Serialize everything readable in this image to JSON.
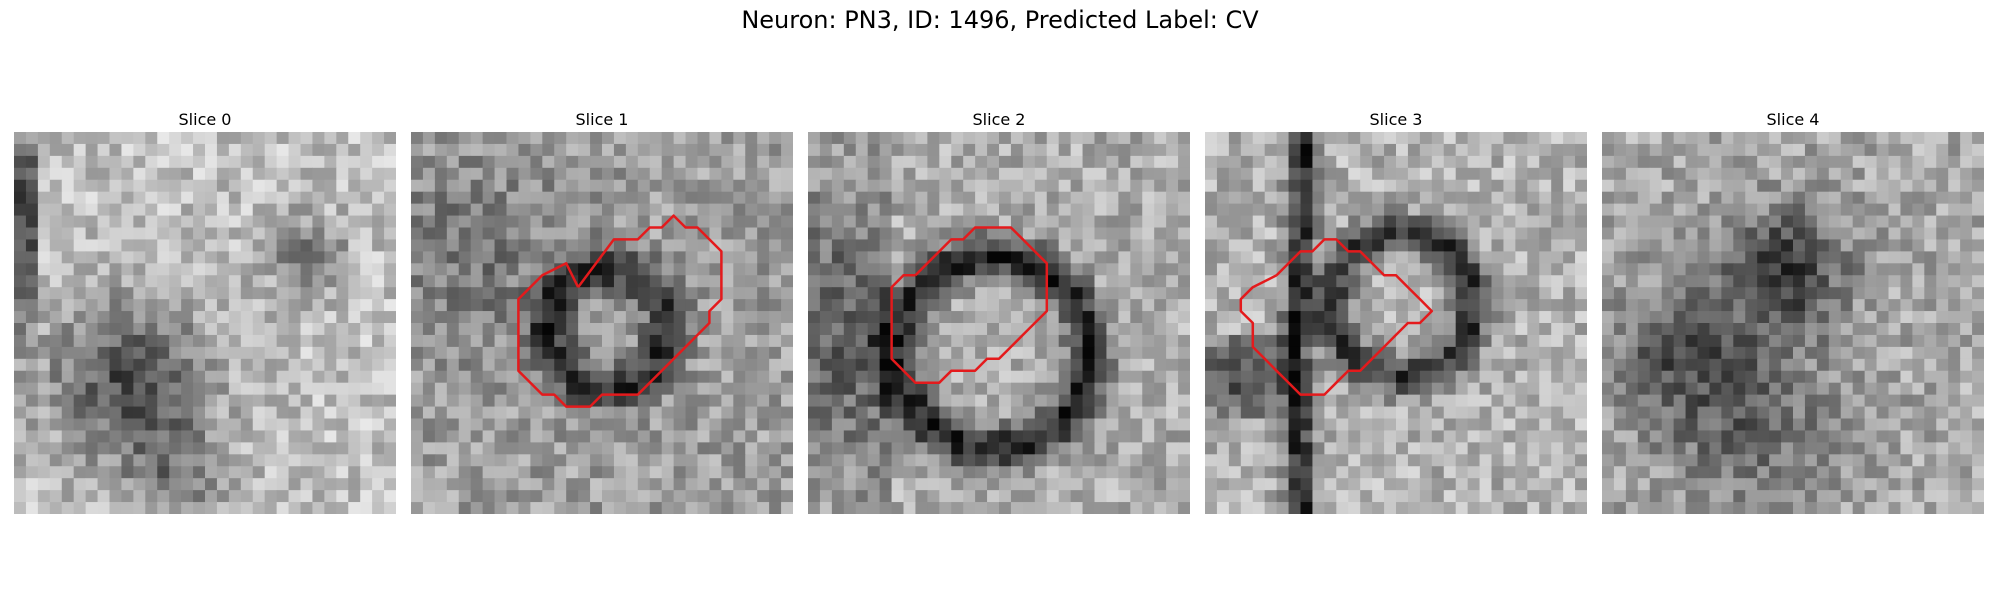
{
  "figure": {
    "title": "Neuron: PN3, ID: 1496, Predicted Label: CV"
  },
  "slices": [
    {
      "title": "Slice 0",
      "has_contour": false
    },
    {
      "title": "Slice 1",
      "has_contour": true
    },
    {
      "title": "Slice 2",
      "has_contour": true
    },
    {
      "title": "Slice 3",
      "has_contour": true
    },
    {
      "title": "Slice 4",
      "has_contour": false
    }
  ],
  "colors": {
    "contour": "#e41a1c",
    "background": "#ffffff"
  }
}
